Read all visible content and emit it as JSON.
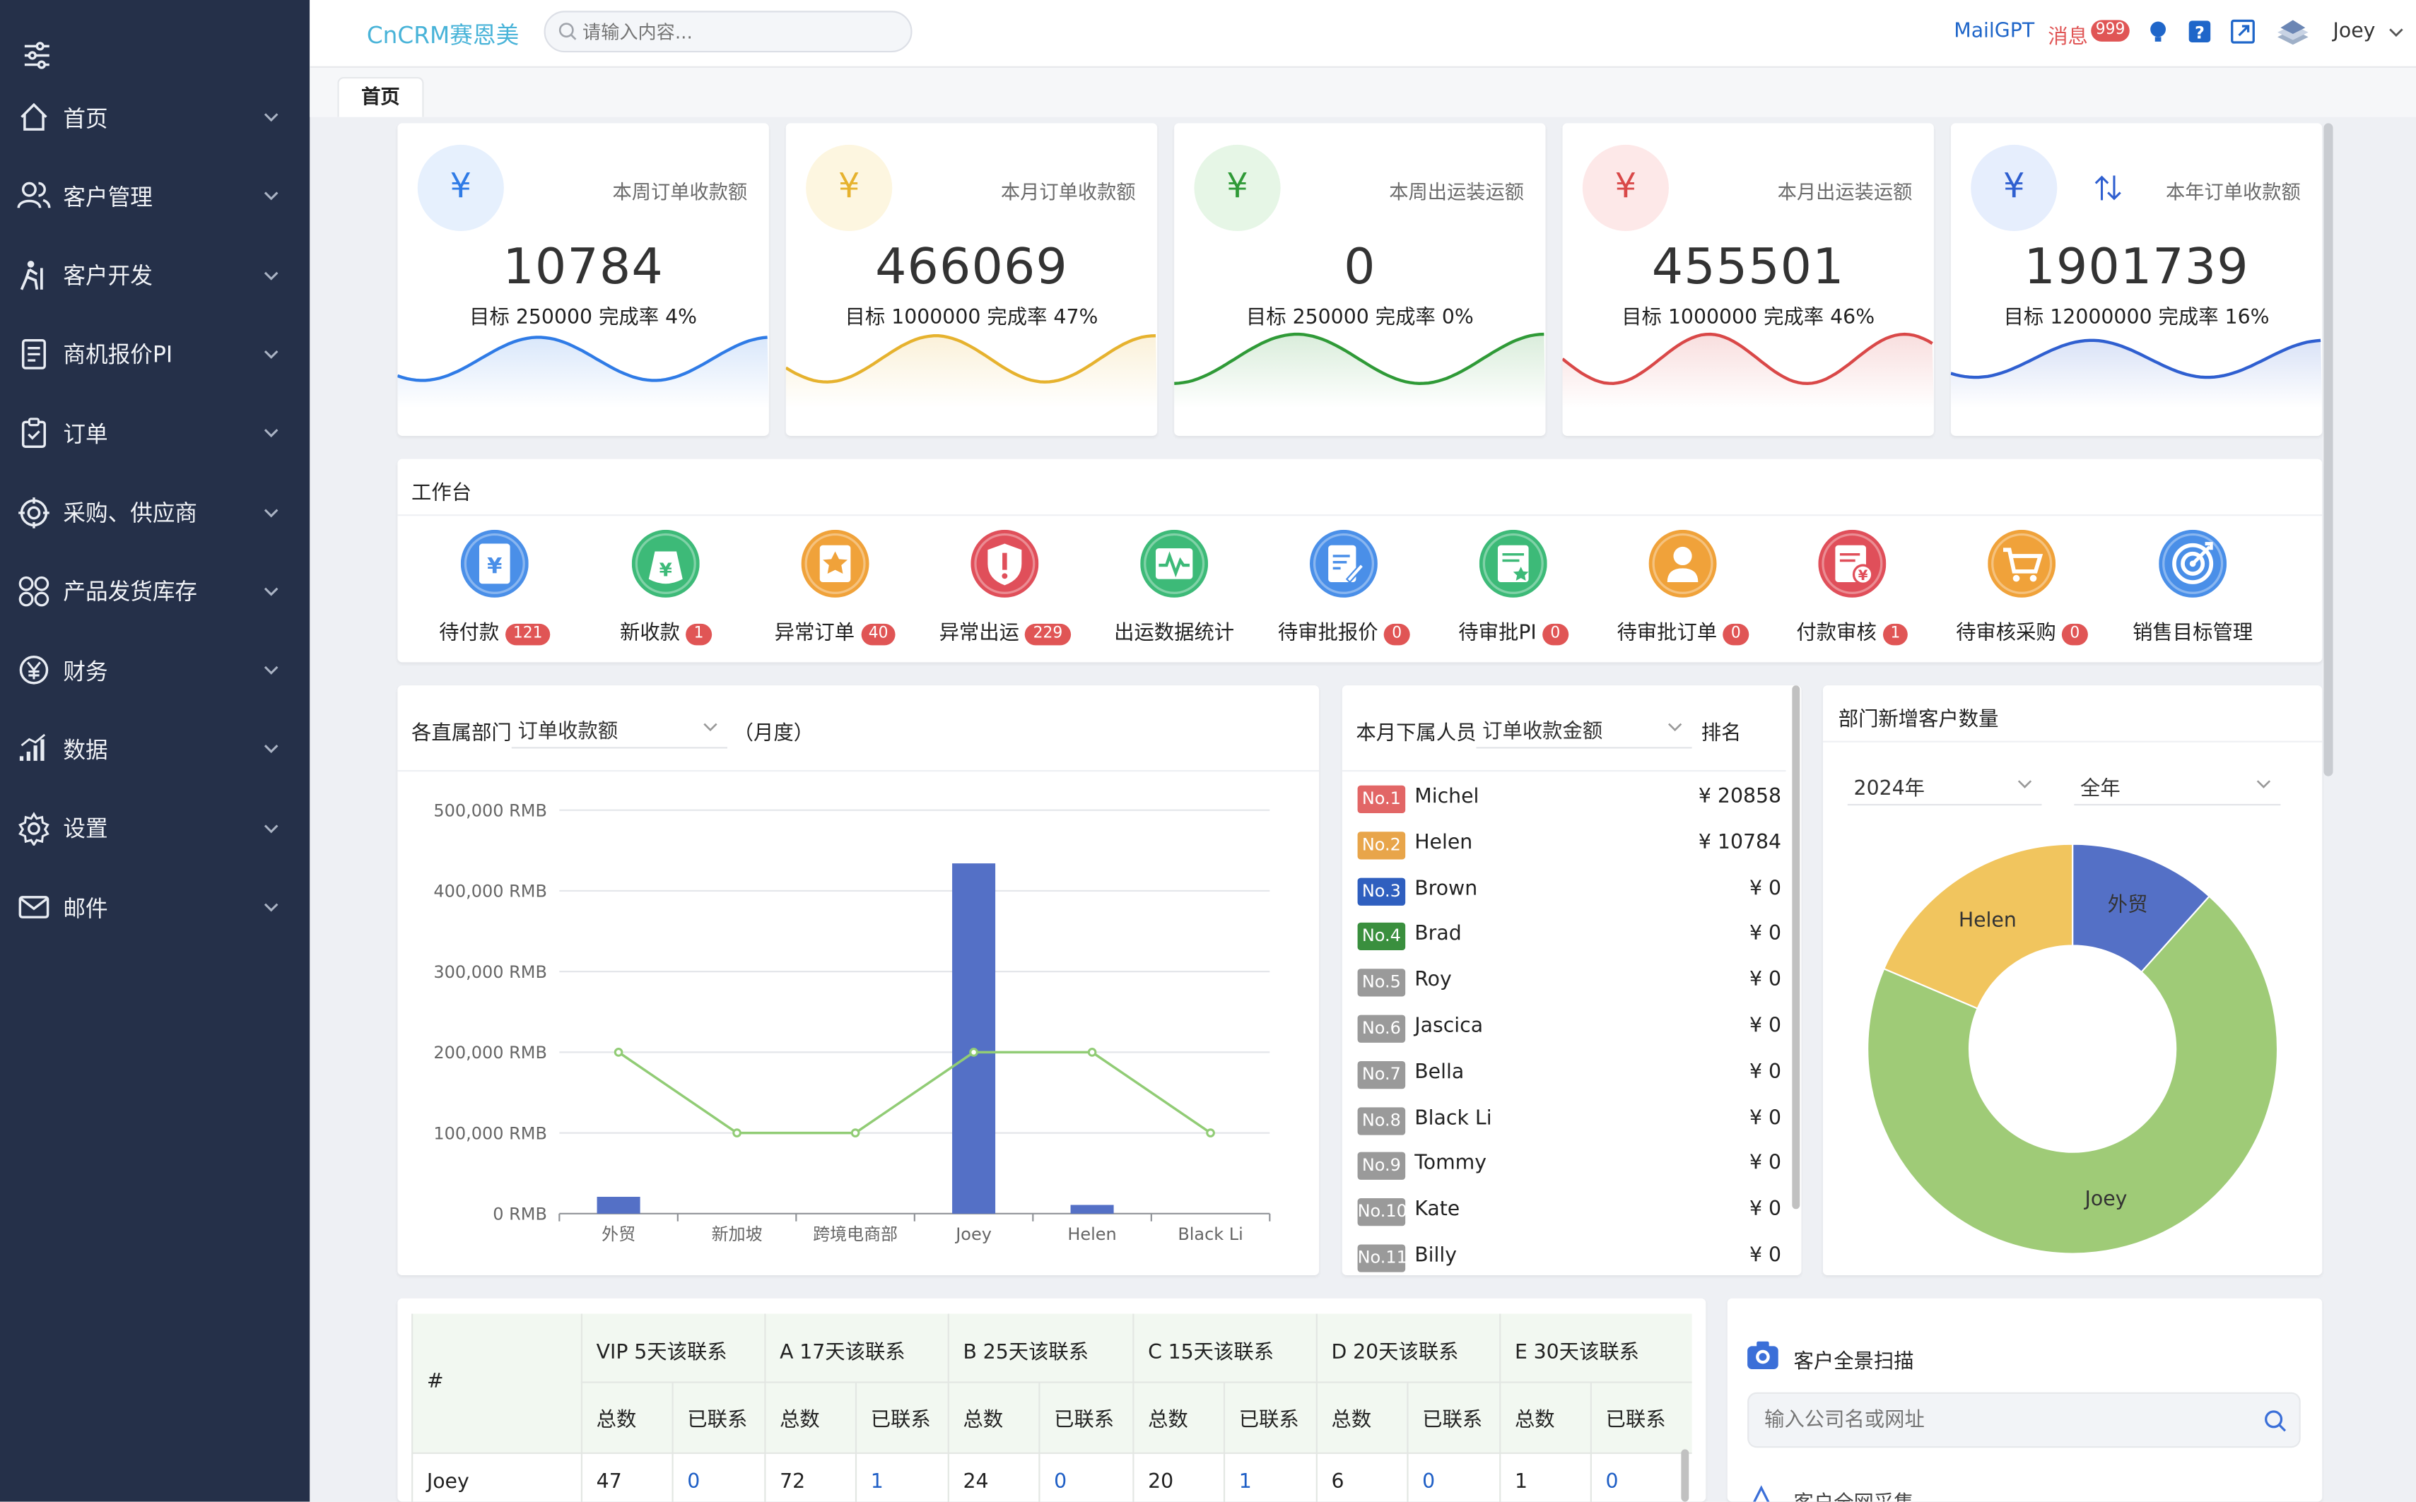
{
  "sidebar": {
    "toggle_icon": "sliders-icon",
    "items": [
      {
        "label": "首页",
        "icon": "home-icon"
      },
      {
        "label": "客户管理",
        "icon": "users-icon"
      },
      {
        "label": "客户开发",
        "icon": "hiker-icon"
      },
      {
        "label": "商机报价PI",
        "icon": "document-icon"
      },
      {
        "label": "订单",
        "icon": "clipboard-icon"
      },
      {
        "label": "采购、供应商",
        "icon": "target-icon"
      },
      {
        "label": "产品发货库存",
        "icon": "grid-icon"
      },
      {
        "label": "财务",
        "icon": "money-icon"
      },
      {
        "label": "数据",
        "icon": "bar-signal-icon"
      },
      {
        "label": "设置",
        "icon": "gear-icon"
      },
      {
        "label": "邮件",
        "icon": "mail-icon"
      }
    ]
  },
  "header": {
    "brand": "CnCRM赛恩美",
    "search_placeholder": "请输入内容...",
    "mailgpt": "MailGPT",
    "messages_label": "消息",
    "messages_badge": "999",
    "user": "Joey"
  },
  "tabs": {
    "home": "首页"
  },
  "stats": [
    {
      "label": "本周订单收款额",
      "value": "10784",
      "target": "目标 250000 完成率 4%",
      "color": "#2f7be6",
      "bg": "#e6f0fd"
    },
    {
      "label": "本月订单收款额",
      "value": "466069",
      "target": "目标 1000000 完成率 47%",
      "color": "#e6b22e",
      "bg": "#fdf6e0"
    },
    {
      "label": "本周出运装运额",
      "value": "0",
      "target": "目标 250000 完成率 0%",
      "color": "#2f9a37",
      "bg": "#e6f6e6"
    },
    {
      "label": "本月出运装运额",
      "value": "455501",
      "target": "目标 1000000 完成率 46%",
      "color": "#d94848",
      "bg": "#fde8e8"
    },
    {
      "label": "本年订单收款额",
      "value": "1901739",
      "target": "目标 12000000 完成率 16%",
      "color": "#2f5fd0",
      "bg": "#e6eefd"
    }
  ],
  "stat_symbol": "¥",
  "workbench": {
    "title": "工作台",
    "items": [
      {
        "label": "待付款",
        "badge": "121",
        "color": "#4a8fe8",
        "icon": "payment-icon"
      },
      {
        "label": "新收款",
        "badge": "1",
        "color": "#3dba78",
        "icon": "money-bag-icon"
      },
      {
        "label": "异常订单",
        "badge": "40",
        "color": "#f0a23a",
        "icon": "warning-order-icon"
      },
      {
        "label": "异常出运",
        "badge": "229",
        "color": "#e04f5a",
        "icon": "shield-alert-icon"
      },
      {
        "label": "出运数据统计",
        "badge": "",
        "color": "#3dba78",
        "icon": "pulse-chart-icon"
      },
      {
        "label": "待审批报价",
        "badge": "0",
        "color": "#4a8fe8",
        "icon": "edit-doc-icon"
      },
      {
        "label": "待审批PI",
        "badge": "0",
        "color": "#3dba78",
        "icon": "star-doc-icon"
      },
      {
        "label": "待审批订单",
        "badge": "0",
        "color": "#f0a23a",
        "icon": "person-stamp-icon"
      },
      {
        "label": "付款审核",
        "badge": "1",
        "color": "#e04f5a",
        "icon": "invoice-check-icon"
      },
      {
        "label": "待审核采购",
        "badge": "0",
        "color": "#f0a23a",
        "icon": "cart-icon"
      },
      {
        "label": "销售目标管理",
        "badge": "",
        "color": "#4a8fe8",
        "icon": "target-dart-icon"
      }
    ]
  },
  "dept_chart_panel": {
    "prefix": "各直属部门",
    "select": "订单收款额",
    "suffix": "（月度）"
  },
  "chart_data": [
    {
      "type": "bar",
      "categories": [
        "外贸",
        "新加坡",
        "跨境电商部",
        "Joey",
        "Helen",
        "Black Li"
      ],
      "series": [
        {
          "type": "bar",
          "values": [
            20858,
            0,
            0,
            434000,
            10784,
            0
          ],
          "color": "#5470c6"
        },
        {
          "type": "line",
          "values": [
            200000,
            100000,
            100000,
            200000,
            200000,
            100000
          ],
          "color": "#91cc75"
        }
      ],
      "y_ticks": [
        "500,000 RMB",
        "400,000 RMB",
        "300,000 RMB",
        "200,000 RMB",
        "100,000 RMB",
        "0 RMB"
      ],
      "ylim": [
        0,
        500000
      ],
      "grid": true
    },
    {
      "type": "pie",
      "donut": true,
      "slices": [
        {
          "label": "外贸",
          "value": 1,
          "color": "#5470c6"
        },
        {
          "label": "Joey",
          "value": 6,
          "color": "#9fcb77"
        },
        {
          "label": "Helen",
          "value": 1.6,
          "color": "#f1c55e"
        }
      ]
    }
  ],
  "ranking": {
    "prefix": "本月下属人员",
    "select": "订单收款金额",
    "suffix": "排名",
    "rows": [
      {
        "no": "No.1",
        "name": "Michel",
        "value": "¥ 20858",
        "color": "#e26666"
      },
      {
        "no": "No.2",
        "name": "Helen",
        "value": "¥ 10784",
        "color": "#e8a54a"
      },
      {
        "no": "No.3",
        "name": "Brown",
        "value": "¥ 0",
        "color": "#2f5fbf"
      },
      {
        "no": "No.4",
        "name": "Brad",
        "value": "¥ 0",
        "color": "#3a8f3e"
      },
      {
        "no": "No.5",
        "name": "Roy",
        "value": "¥ 0",
        "color": "#9a9a9a"
      },
      {
        "no": "No.6",
        "name": "Jascica",
        "value": "¥ 0",
        "color": "#9a9a9a"
      },
      {
        "no": "No.7",
        "name": "Bella",
        "value": "¥ 0",
        "color": "#9a9a9a"
      },
      {
        "no": "No.8",
        "name": "Black Li",
        "value": "¥ 0",
        "color": "#9a9a9a"
      },
      {
        "no": "No.9",
        "name": "Tommy",
        "value": "¥ 0",
        "color": "#9a9a9a"
      },
      {
        "no": "No.10",
        "name": "Kate",
        "value": "¥ 0",
        "color": "#9a9a9a"
      },
      {
        "no": "No.11",
        "name": "Billy",
        "value": "¥ 0",
        "color": "#9a9a9a"
      }
    ]
  },
  "new_customers": {
    "title": "部门新增客户数量",
    "year": "2024年",
    "period": "全年"
  },
  "contact_table": {
    "hash": "#",
    "groups": [
      {
        "tier": "VIP",
        "rule": "5天该联系"
      },
      {
        "tier": "A",
        "rule": "17天该联系"
      },
      {
        "tier": "B",
        "rule": "25天该联系"
      },
      {
        "tier": "C",
        "rule": "15天该联系"
      },
      {
        "tier": "D",
        "rule": "20天该联系"
      },
      {
        "tier": "E",
        "rule": "30天该联系"
      }
    ],
    "sub_total": "总数",
    "sub_contacted": "已联系",
    "rows": [
      {
        "name": "Joey",
        "values": [
          "47",
          "0",
          "72",
          "1",
          "24",
          "0",
          "20",
          "1",
          "6",
          "0",
          "1",
          "0"
        ]
      }
    ]
  },
  "scan": {
    "title": "客户全景扫描",
    "placeholder": "输入公司名或网址",
    "next": "客户全网采集"
  }
}
